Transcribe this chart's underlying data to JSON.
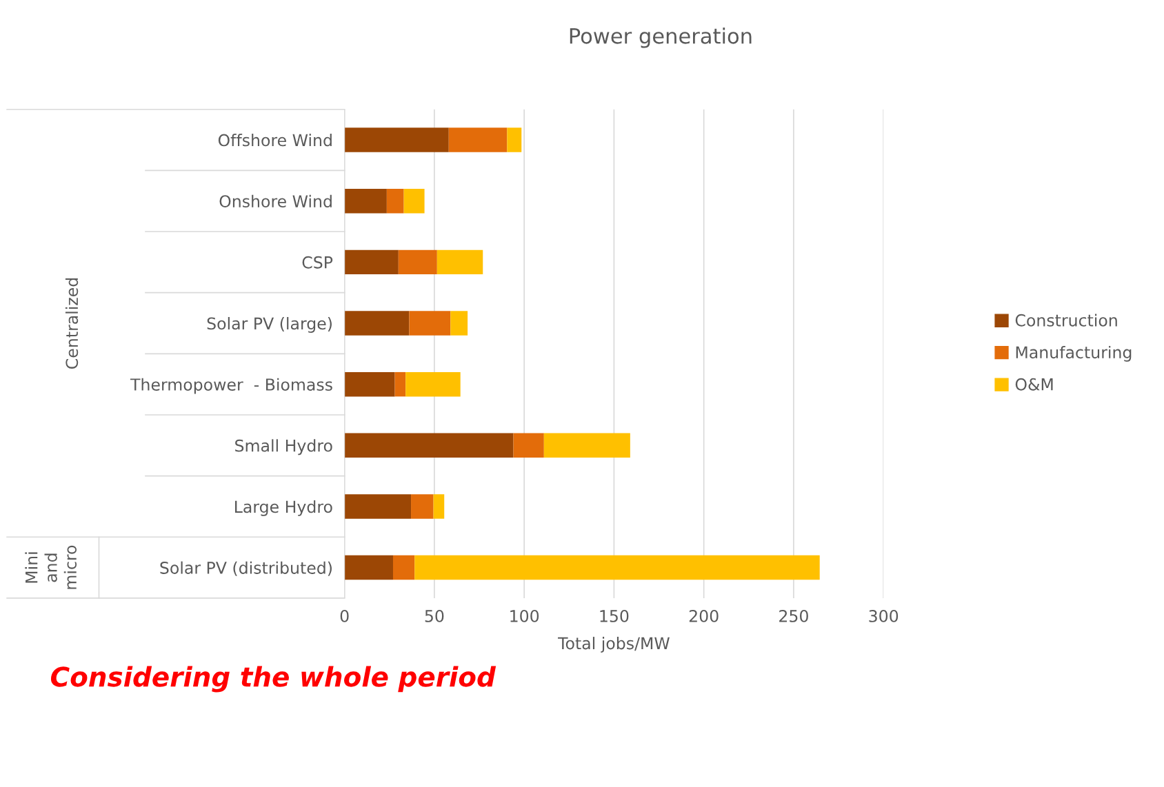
{
  "chart_data": {
    "type": "bar",
    "orientation": "horizontal",
    "stacked": true,
    "title": "Power generation",
    "xlabel": "Total jobs/MW",
    "categories": [
      "Offshore Wind",
      "Onshore Wind",
      "CSP",
      "Solar PV (large)",
      "Thermopower  - Biomass",
      "Small Hydro",
      "Large Hydro",
      "Solar PV (distributed)"
    ],
    "series": [
      {
        "name": "Construction",
        "color": "#9c4705",
        "values": [
          58,
          23.5,
          30,
          36,
          28,
          94,
          37,
          27
        ]
      },
      {
        "name": "Manufacturing",
        "color": "#e36c0a",
        "values": [
          32.5,
          9.5,
          21.5,
          23,
          6,
          17,
          12.5,
          12
        ]
      },
      {
        "name": "O&M",
        "color": "#ffc000",
        "values": [
          8,
          11.5,
          25.5,
          9.5,
          30.5,
          48,
          6,
          225.5
        ]
      }
    ],
    "xlim": [
      0,
      300
    ],
    "xticks": [
      0,
      50,
      100,
      150,
      200,
      250,
      300
    ],
    "grid": "x",
    "legend": "right",
    "annotations": [
      "Centralized",
      "Mini and micro",
      "Considering the whole period"
    ]
  }
}
